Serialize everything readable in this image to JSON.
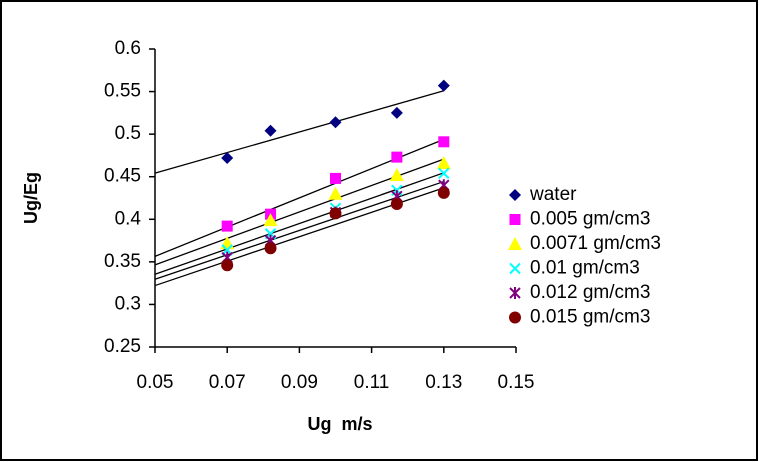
{
  "chart_data": {
    "type": "scatter",
    "x_label": "Ug  m/s",
    "y_label": "Ug/Eg",
    "x": [
      0.07,
      0.082,
      0.1,
      0.117,
      0.13
    ],
    "series": [
      {
        "name": "water",
        "color": "#000080",
        "marker": "diamond",
        "values": [
          0.472,
          0.504,
          0.514,
          0.525,
          0.557
        ]
      },
      {
        "name": "0.005 gm/cm3",
        "color": "#ff00ff",
        "marker": "square",
        "values": [
          0.392,
          0.406,
          0.448,
          0.473,
          0.491
        ]
      },
      {
        "name": "0.0071 gm/cm3",
        "color": "#ffff00",
        "marker": "triangle",
        "values": [
          0.372,
          0.399,
          0.43,
          0.452,
          0.466
        ]
      },
      {
        "name": "0.01 gm/cm3",
        "color": "#00ffff",
        "marker": "x",
        "values": [
          0.364,
          0.383,
          0.413,
          0.434,
          0.454
        ]
      },
      {
        "name": "0.012 gm/cm3",
        "color": "#800080",
        "marker": "star",
        "values": [
          0.355,
          0.375,
          0.408,
          0.427,
          0.44
        ]
      },
      {
        "name": "0.015 gm/cm3",
        "color": "#800000",
        "marker": "circle",
        "values": [
          0.346,
          0.366,
          0.407,
          0.418,
          0.431
        ]
      }
    ],
    "xlim": [
      0.05,
      0.15
    ],
    "xticks": [
      0.05,
      0.07,
      0.09,
      0.11,
      0.13,
      0.15
    ],
    "ylim": [
      0.25,
      0.6
    ],
    "yticks": [
      0.25,
      0.3,
      0.35,
      0.4,
      0.45,
      0.5,
      0.55,
      0.6
    ],
    "trendline": "linear",
    "legend": "right",
    "grid": false
  }
}
